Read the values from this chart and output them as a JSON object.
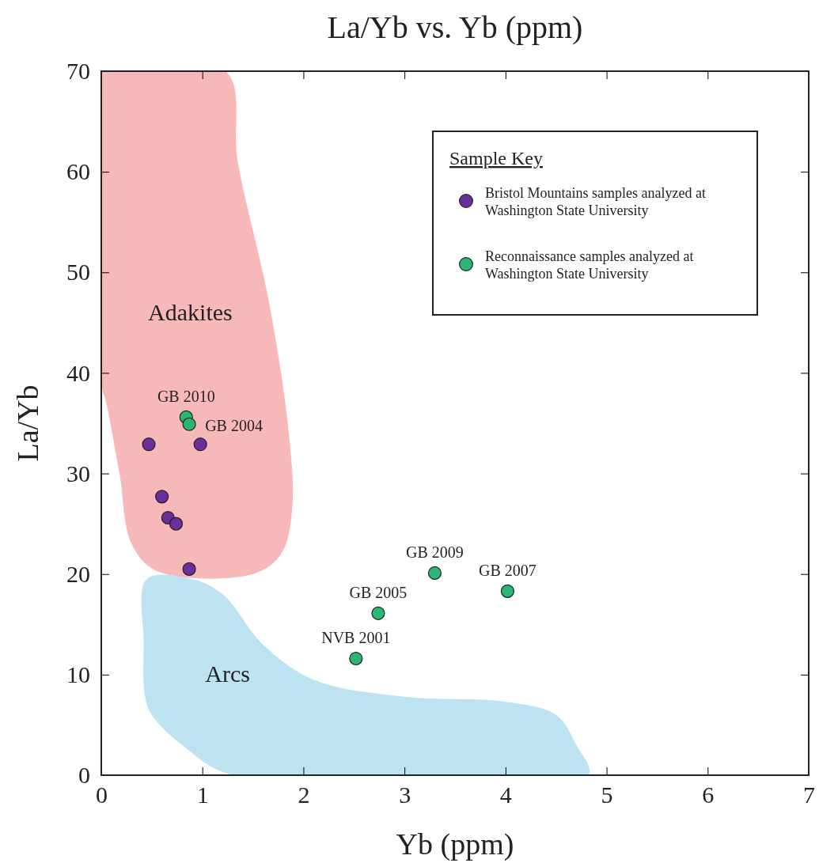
{
  "chart_data": {
    "type": "scatter",
    "title": "La/Yb vs. Yb (ppm)",
    "xlabel": "Yb (ppm)",
    "ylabel": "La/Yb",
    "legend_title": "Sample Key",
    "xlim": [
      0,
      7
    ],
    "xticks": [
      0,
      1,
      2,
      3,
      4,
      5,
      6,
      7
    ],
    "ylim": [
      0,
      70
    ],
    "yticks": [
      0,
      10,
      20,
      30,
      40,
      50,
      60,
      70
    ],
    "legend": "top right",
    "marker": "circle",
    "series": [
      {
        "name": "Bristol Mountains samples analyzed at Washington State University",
        "color": "#6a2f9a",
        "x": [
          0.47,
          0.6,
          0.66,
          0.74,
          0.87,
          0.98
        ],
        "values": [
          32.9,
          27.7,
          25.6,
          25.0,
          20.5,
          32.9
        ]
      },
      {
        "name": "Reconnaissance samples analyzed at Washington State University",
        "color": "#2bb673",
        "x": [
          0.84,
          0.87,
          2.52,
          2.74,
          3.3,
          4.02
        ],
        "values": [
          35.6,
          34.9,
          11.6,
          16.1,
          20.1,
          18.3
        ]
      }
    ],
    "annotations": [
      {
        "text": "GB 2010",
        "x": 0.84,
        "y": 35.6
      },
      {
        "text": "GB 2004",
        "x": 0.98,
        "y": 32.9
      },
      {
        "text": "GB 2009",
        "x": 3.3,
        "y": 20.1
      },
      {
        "text": "GB 2007",
        "x": 4.02,
        "y": 18.3
      },
      {
        "text": "GB 2005",
        "x": 2.74,
        "y": 16.1
      },
      {
        "text": "NVB 2001",
        "x": 2.52,
        "y": 11.6
      },
      "Adakites",
      "Arcs"
    ]
  }
}
